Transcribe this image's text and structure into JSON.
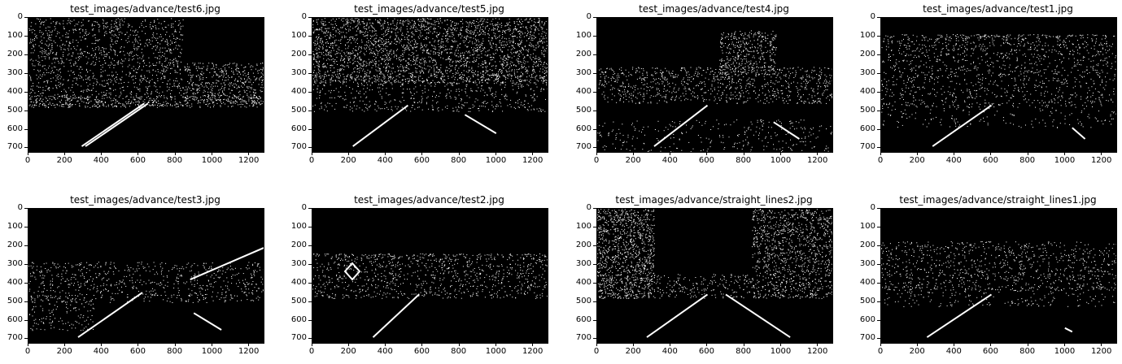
{
  "figure": {
    "axis_x_ticks": [
      "0",
      "200",
      "400",
      "600",
      "800",
      "1000",
      "1200"
    ],
    "axis_y_ticks": [
      "0",
      "100",
      "200",
      "300",
      "400",
      "500",
      "600",
      "700"
    ],
    "panels": [
      {
        "title": "test_images/advance/test6.jpg",
        "pattern": "trees-left-right",
        "lanes": [
          [
            290,
            690,
            630,
            460
          ],
          [
            310,
            690,
            650,
            460
          ]
        ]
      },
      {
        "title": "test_images/advance/test5.jpg",
        "pattern": "dense-top",
        "lanes": [
          [
            220,
            690,
            520,
            470
          ],
          [
            830,
            520,
            1000,
            620
          ]
        ]
      },
      {
        "title": "test_images/advance/test4.jpg",
        "pattern": "mid-band",
        "lanes": [
          [
            310,
            690,
            600,
            470
          ],
          [
            960,
            560,
            1100,
            650
          ]
        ]
      },
      {
        "title": "test_images/advance/test1.jpg",
        "pattern": "trees-center-right",
        "lanes": [
          [
            280,
            690,
            600,
            470
          ],
          [
            1040,
            590,
            1110,
            650
          ]
        ]
      },
      {
        "title": "test_images/advance/test3.jpg",
        "pattern": "sparse",
        "lanes": [
          [
            270,
            690,
            620,
            450
          ],
          [
            900,
            560,
            1050,
            650
          ],
          [
            880,
            380,
            1280,
            210
          ]
        ]
      },
      {
        "title": "test_images/advance/test2.jpg",
        "pattern": "sign-diamond",
        "lanes": [
          [
            330,
            690,
            580,
            460
          ]
        ]
      },
      {
        "title": "test_images/advance/straight_lines2.jpg",
        "pattern": "straight",
        "lanes": [
          [
            270,
            690,
            600,
            460
          ],
          [
            700,
            460,
            1050,
            690
          ]
        ]
      },
      {
        "title": "test_images/advance/straight_lines1.jpg",
        "pattern": "straight-one",
        "lanes": [
          [
            250,
            690,
            600,
            460
          ],
          [
            1000,
            640,
            1040,
            660
          ]
        ]
      }
    ]
  }
}
